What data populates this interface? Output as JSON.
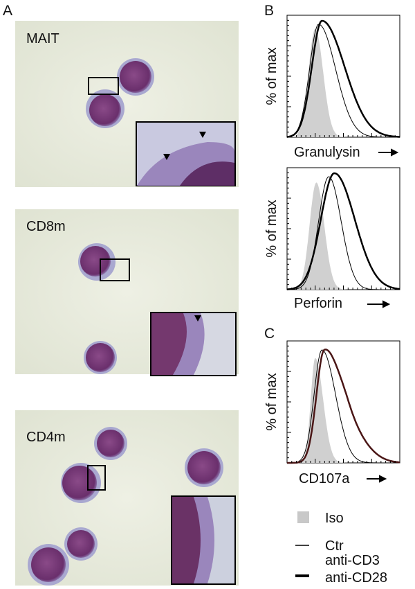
{
  "panels": {
    "A": {
      "label": "A",
      "images": [
        {
          "label": "MAIT"
        },
        {
          "label": "CD8m"
        },
        {
          "label": "CD4m"
        }
      ]
    },
    "B": {
      "label": "B",
      "plots": [
        {
          "y_label": "% of max",
          "x_label": "Granulysin"
        },
        {
          "y_label": "% of max",
          "x_label": "Perforin"
        }
      ]
    },
    "C": {
      "label": "C",
      "plots": [
        {
          "y_label": "% of max",
          "x_label": "CD107a"
        }
      ]
    }
  },
  "legend": [
    {
      "label": "Iso"
    },
    {
      "label": "Ctr"
    },
    {
      "lines": [
        "anti-CD3",
        "anti-CD28"
      ]
    }
  ]
}
